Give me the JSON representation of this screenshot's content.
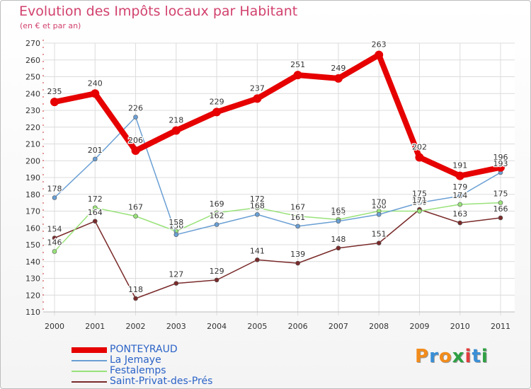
{
  "title": "Evolution des Impôts locaux par Habitant",
  "subtitle": "(en € et par an)",
  "logo_text": "Proxiti",
  "chart_data": {
    "type": "line",
    "x": [
      "2000",
      "2001",
      "2002",
      "2003",
      "2004",
      "2005",
      "2006",
      "2007",
      "2008",
      "2009",
      "2010",
      "2011"
    ],
    "ylim": [
      110,
      270
    ],
    "yticks": [
      110,
      120,
      130,
      140,
      150,
      160,
      170,
      180,
      190,
      200,
      210,
      220,
      230,
      240,
      250,
      260,
      270
    ],
    "grid": true,
    "legend_position": "bottom-left",
    "series": [
      {
        "name": "PONTEYRAUD",
        "color": "#e60000",
        "width": 8,
        "values": [
          235,
          240,
          206,
          218,
          229,
          237,
          251,
          249,
          263,
          202,
          191,
          196
        ]
      },
      {
        "name": "La Jemaye",
        "color": "#6a9fd4",
        "width": 1.5,
        "values": [
          178,
          201,
          226,
          156,
          162,
          168,
          161,
          164,
          168,
          175,
          179,
          193
        ]
      },
      {
        "name": "Festalemps",
        "color": "#99e27a",
        "width": 1.5,
        "values": [
          146,
          172,
          167,
          158,
          169,
          172,
          167,
          165,
          170,
          170,
          174,
          175
        ]
      },
      {
        "name": "Saint-Privat-des-Prés",
        "color": "#7a2a2a",
        "width": 1.5,
        "values": [
          154,
          164,
          118,
          127,
          129,
          141,
          139,
          148,
          151,
          171,
          163,
          166
        ]
      }
    ]
  }
}
